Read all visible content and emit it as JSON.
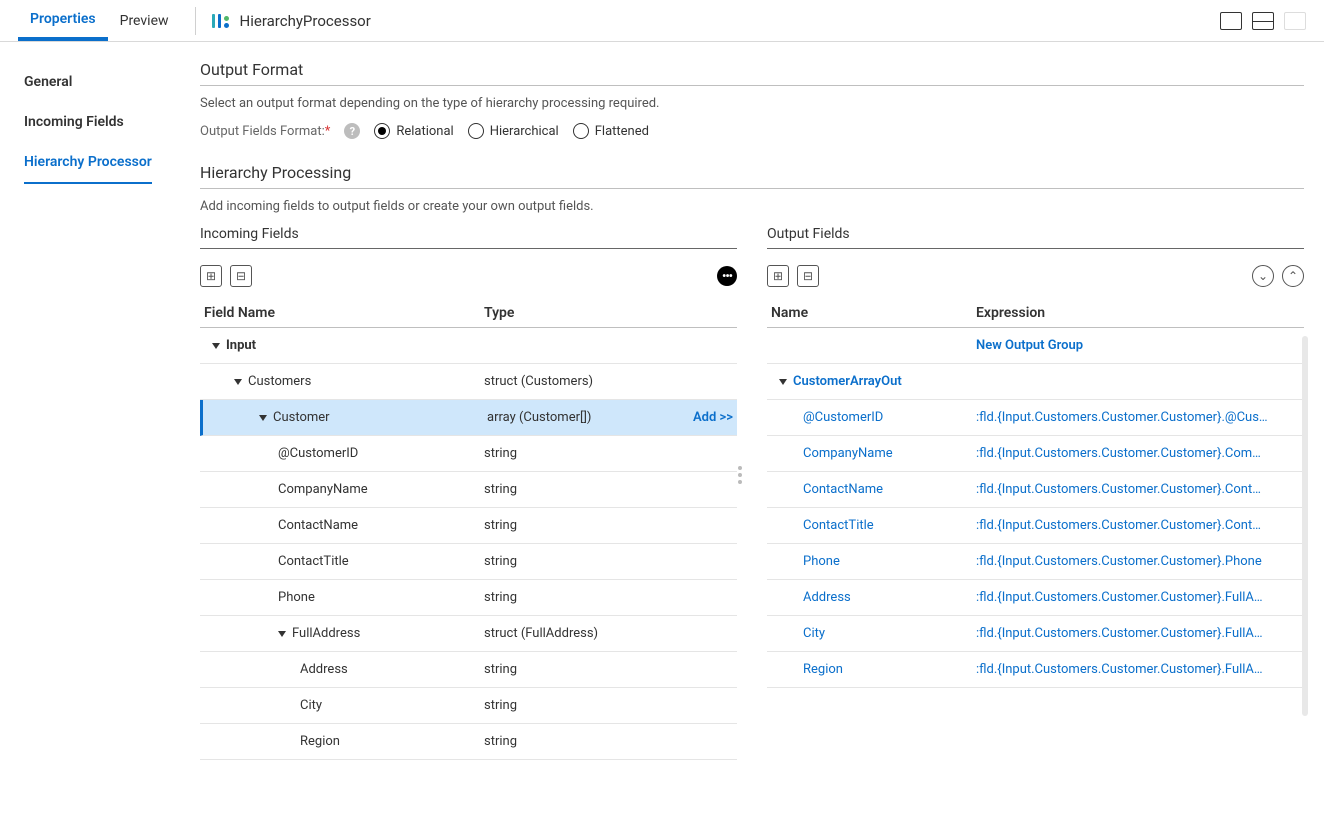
{
  "topbar": {
    "tabs": {
      "properties": "Properties",
      "preview": "Preview"
    },
    "processor_name": "HierarchyProcessor"
  },
  "side": {
    "general": "General",
    "incoming": "Incoming Fields",
    "hierarchy": "Hierarchy Processor"
  },
  "output_format": {
    "title": "Output Format",
    "desc": "Select an output format depending on the type of hierarchy processing required.",
    "label": "Output Fields Format:",
    "options": {
      "relational": "Relational",
      "hierarchical": "Hierarchical",
      "flattened": "Flattened"
    },
    "selected": "relational"
  },
  "hierarchy_processing": {
    "title": "Hierarchy Processing",
    "desc": "Add incoming fields to output fields or create your own output fields."
  },
  "incoming": {
    "title": "Incoming Fields",
    "headers": {
      "name": "Field Name",
      "type": "Type"
    },
    "add_label": "Add >>",
    "rows": [
      {
        "indent": 0,
        "caret": true,
        "name": "Input",
        "type": "",
        "bold": true
      },
      {
        "indent": 1,
        "caret": true,
        "name": "Customers",
        "type": "struct (Customers)"
      },
      {
        "indent": 2,
        "caret": true,
        "name": "Customer",
        "type": "array (Customer[])",
        "selected": true,
        "action": "Add >>"
      },
      {
        "indent": 3,
        "caret": false,
        "name": "@CustomerID",
        "type": "string"
      },
      {
        "indent": 3,
        "caret": false,
        "name": "CompanyName",
        "type": "string"
      },
      {
        "indent": 3,
        "caret": false,
        "name": "ContactName",
        "type": "string"
      },
      {
        "indent": 3,
        "caret": false,
        "name": "ContactTitle",
        "type": "string"
      },
      {
        "indent": 3,
        "caret": false,
        "name": "Phone",
        "type": "string"
      },
      {
        "indent": 3,
        "caret": true,
        "name": "FullAddress",
        "type": "struct (FullAddress)"
      },
      {
        "indent": 4,
        "caret": false,
        "name": "Address",
        "type": "string"
      },
      {
        "indent": 4,
        "caret": false,
        "name": "City",
        "type": "string"
      },
      {
        "indent": 4,
        "caret": false,
        "name": "Region",
        "type": "string"
      }
    ]
  },
  "output": {
    "title": "Output Fields",
    "headers": {
      "name": "Name",
      "expr": "Expression"
    },
    "new_group": "New Output Group",
    "rows": [
      {
        "indent": 0,
        "caret": true,
        "name": "CustomerArrayOut",
        "expr": "",
        "is_group": true
      },
      {
        "indent": 1,
        "name": "@CustomerID",
        "expr": ":fld.{Input.Customers.Customer.Customer}.@Cus…"
      },
      {
        "indent": 1,
        "name": "CompanyName",
        "expr": ":fld.{Input.Customers.Customer.Customer}.Com…"
      },
      {
        "indent": 1,
        "name": "ContactName",
        "expr": ":fld.{Input.Customers.Customer.Customer}.Cont…"
      },
      {
        "indent": 1,
        "name": "ContactTitle",
        "expr": ":fld.{Input.Customers.Customer.Customer}.Cont…"
      },
      {
        "indent": 1,
        "name": "Phone",
        "expr": ":fld.{Input.Customers.Customer.Customer}.Phone"
      },
      {
        "indent": 1,
        "name": "Address",
        "expr": ":fld.{Input.Customers.Customer.Customer}.FullA…"
      },
      {
        "indent": 1,
        "name": "City",
        "expr": ":fld.{Input.Customers.Customer.Customer}.FullA…"
      },
      {
        "indent": 1,
        "name": "Region",
        "expr": ":fld.{Input.Customers.Customer.Customer}.FullA…"
      }
    ]
  },
  "colors": {
    "accent": "#0b6fcb",
    "selected_bg": "#cfe7fb"
  }
}
